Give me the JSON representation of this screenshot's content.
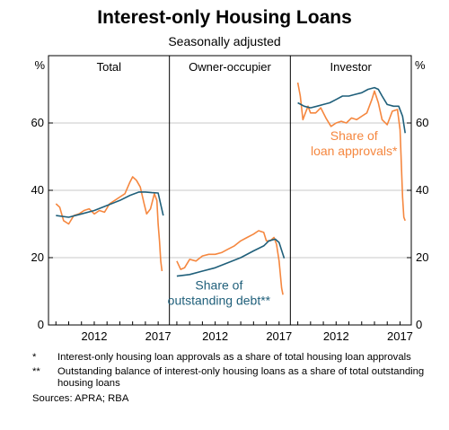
{
  "title": "Interest-only Housing Loans",
  "subtitle": "Seasonally adjusted",
  "footnotes": [
    {
      "mark": "*",
      "text": "Interest-only housing loan approvals as a share of total housing loan approvals"
    },
    {
      "mark": "**",
      "text": "Outstanding balance of interest-only housing loans as a share of total outstanding housing loans"
    }
  ],
  "sources": "Sources:  APRA; RBA",
  "colors": {
    "outstanding": "#1f5f7a",
    "approvals": "#f5873f"
  },
  "chart_data": {
    "type": "line",
    "yunit_left": "%",
    "yunit_right": "%",
    "ylim": [
      0,
      80
    ],
    "yticks": [
      0,
      20,
      40,
      60
    ],
    "xticks": [
      2012,
      2017
    ],
    "xlim": [
      2008.7,
      2017.6
    ],
    "grid": true,
    "panels": [
      {
        "name": "Total",
        "annotations": [],
        "series": [
          {
            "key": "outstanding",
            "x": [
              2009.0,
              2010.0,
              2011.0,
              2012.0,
              2013.0,
              2014.0,
              2014.8,
              2015.5,
              2016.0,
              2016.5,
              2017.0,
              2017.4
            ],
            "values": [
              32.5,
              32,
              33,
              34,
              35.5,
              37,
              38.5,
              39.5,
              39.5,
              39.3,
              39.2,
              32.5
            ]
          },
          {
            "key": "approvals",
            "x": [
              2009.0,
              2009.3,
              2009.6,
              2010.0,
              2010.4,
              2010.8,
              2011.2,
              2011.6,
              2012.0,
              2012.4,
              2012.8,
              2013.2,
              2013.6,
              2014.0,
              2014.4,
              2014.8,
              2015.0,
              2015.3,
              2015.6,
              2015.9,
              2016.1,
              2016.4,
              2016.7,
              2016.9,
              2017.0,
              2017.1,
              2017.2,
              2017.3
            ],
            "values": [
              36,
              35,
              31,
              30,
              32.5,
              33,
              34,
              34.5,
              33,
              34,
              33.5,
              36,
              37,
              38,
              39,
              42.5,
              44,
              43,
              41,
              36,
              33,
              34.5,
              39,
              37,
              30,
              25,
              19,
              16
            ]
          }
        ]
      },
      {
        "name": "Owner-occupier",
        "annotations": [
          {
            "text_lines": [
              "Share of",
              "outstanding debt**"
            ],
            "key": "outstanding",
            "x": 2012.3,
            "y": 10.5
          }
        ],
        "series": [
          {
            "key": "outstanding",
            "x": [
              2009.0,
              2010.0,
              2011.0,
              2012.0,
              2013.0,
              2014.0,
              2015.0,
              2015.8,
              2016.2,
              2016.7,
              2017.0,
              2017.4
            ],
            "values": [
              14.5,
              15,
              16,
              17,
              18.5,
              20,
              22,
              23.5,
              25,
              25.5,
              24.5,
              19.8
            ]
          },
          {
            "key": "approvals",
            "x": [
              2009.0,
              2009.3,
              2009.6,
              2010.0,
              2010.5,
              2011.0,
              2011.5,
              2012.0,
              2012.5,
              2013.0,
              2013.5,
              2014.0,
              2014.5,
              2015.0,
              2015.4,
              2015.8,
              2016.0,
              2016.3,
              2016.6,
              2016.8,
              2017.0,
              2017.1,
              2017.2,
              2017.3
            ],
            "values": [
              19,
              16.5,
              17,
              19.5,
              19,
              20.5,
              21,
              21,
              21.5,
              22.5,
              23.5,
              25,
              26,
              27,
              28,
              27.5,
              25,
              25,
              26,
              24,
              19,
              15,
              11,
              9
            ]
          }
        ]
      },
      {
        "name": "Investor",
        "annotations": [
          {
            "text_lines": [
              "Share of",
              "loan approvals*"
            ],
            "key": "approvals",
            "x": 2013.4,
            "y": 55
          }
        ],
        "series": [
          {
            "key": "outstanding",
            "x": [
              2009.0,
              2009.5,
              2010.0,
              2010.5,
              2011.0,
              2011.5,
              2012.0,
              2012.5,
              2013.0,
              2013.5,
              2014.0,
              2014.5,
              2015.0,
              2015.3,
              2015.6,
              2016.0,
              2016.5,
              2016.9,
              2017.2,
              2017.4
            ],
            "values": [
              66,
              65,
              64.5,
              65,
              65.5,
              66,
              67,
              68,
              68,
              68.5,
              69,
              70,
              70.5,
              70,
              68,
              65.5,
              65,
              65,
              62,
              57
            ]
          },
          {
            "key": "approvals",
            "x": [
              2009.0,
              2009.2,
              2009.4,
              2009.6,
              2009.8,
              2010.0,
              2010.4,
              2010.8,
              2011.2,
              2011.6,
              2012.0,
              2012.4,
              2012.8,
              2013.2,
              2013.6,
              2014.0,
              2014.4,
              2014.8,
              2015.0,
              2015.3,
              2015.6,
              2016.0,
              2016.4,
              2016.8,
              2017.0,
              2017.1,
              2017.2,
              2017.3,
              2017.4
            ],
            "values": [
              72,
              68,
              61,
              63,
              65,
              63,
              63,
              64.5,
              61.5,
              59,
              60,
              60.5,
              60,
              61.5,
              61,
              62,
              63,
              67,
              69.5,
              66,
              61,
              59.5,
              63.5,
              64,
              58,
              48,
              38,
              32,
              31
            ]
          }
        ]
      }
    ]
  }
}
